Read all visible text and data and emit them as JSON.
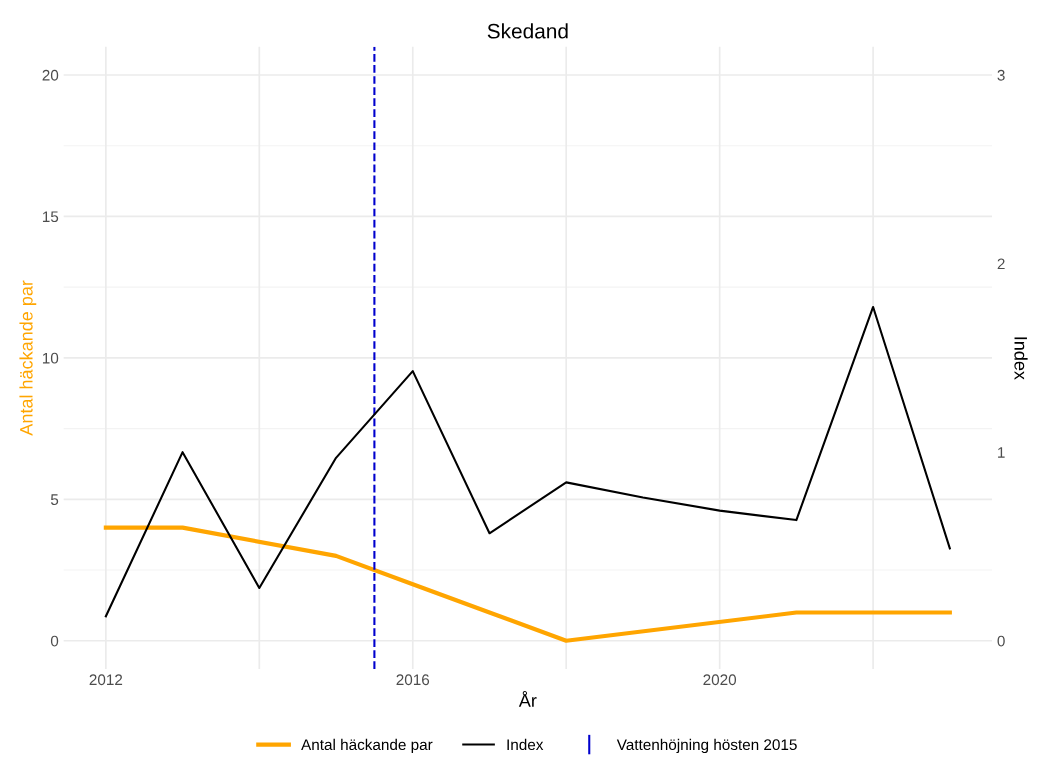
{
  "chart_data": {
    "type": "line",
    "title": "Skedand",
    "xlabel": "År",
    "ylabel": "Antal häckande par",
    "y2label": "Index",
    "series": [
      {
        "name": "Antal häckande par",
        "color": "#ffa500",
        "x": [
          2012,
          2013,
          2015,
          2016,
          2017,
          2018,
          2021,
          2022,
          2023
        ],
        "values": [
          4,
          4,
          3,
          2,
          1,
          0,
          1,
          1,
          1
        ]
      },
      {
        "name": "Index",
        "color": "#000000",
        "axis": "y2",
        "x": [
          2012,
          2013,
          2014,
          2015,
          2016,
          2017,
          2018,
          2019,
          2020,
          2021,
          2022,
          2023
        ],
        "values": [
          0.13,
          1.0,
          0.28,
          0.97,
          1.43,
          0.57,
          0.84,
          0.76,
          0.69,
          0.64,
          1.77,
          0.49
        ]
      }
    ],
    "xlim": [
      2011.45,
      2023.55
    ],
    "xticks": [
      2012,
      {
        "value": 2014,
        "label": null
      },
      2016,
      {
        "value": 2018,
        "label": null
      },
      2020,
      {
        "value": 2022,
        "label": null
      }
    ],
    "ylim": [
      -1.0,
      21.0
    ],
    "yticks": [
      0,
      5,
      10,
      15,
      20
    ],
    "y2lim": [
      -0.15,
      3.15
    ],
    "y2ticks": [
      0,
      1,
      2,
      3
    ],
    "ref_lines": [
      {
        "axis": "x",
        "value": 2015.5,
        "label": "Vattenhöjning hösten 2015",
        "color": "#0000cd",
        "line_style": "dashed"
      }
    ],
    "grid": true,
    "legend": "bottom",
    "marker": "none",
    "line_style": "solid"
  }
}
